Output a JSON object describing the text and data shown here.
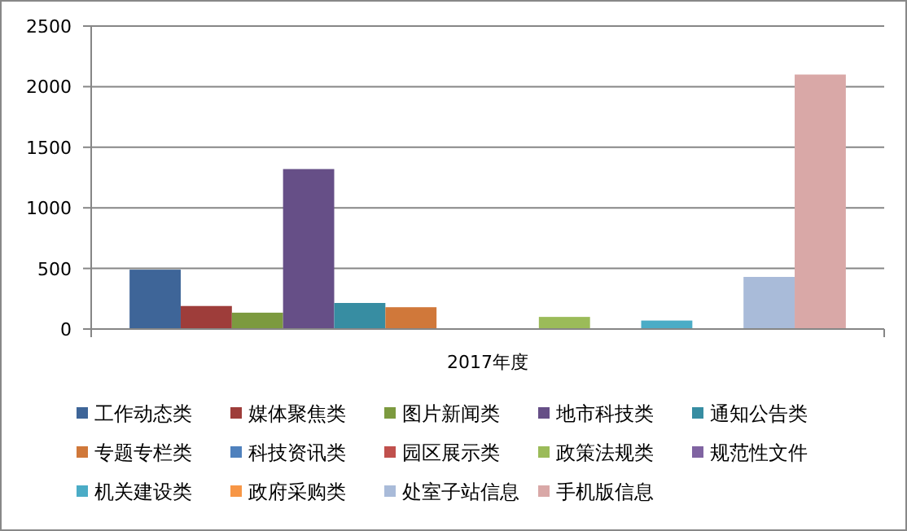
{
  "chart_data": {
    "type": "bar",
    "categories": [
      "2017年度"
    ],
    "ylim": [
      0,
      2500
    ],
    "yticks": [
      0,
      500,
      1000,
      1500,
      2000,
      2500
    ],
    "grid": "y",
    "legend": "bottom",
    "series": [
      {
        "name": "工作动态类",
        "color": "#3e6598",
        "values": [
          490
        ]
      },
      {
        "name": "媒体聚焦类",
        "color": "#9e3d3a",
        "values": [
          190
        ]
      },
      {
        "name": "图片新闻类",
        "color": "#7c9a3f",
        "values": [
          135
        ]
      },
      {
        "name": "地市科技类",
        "color": "#664f87",
        "values": [
          1320
        ]
      },
      {
        "name": "通知公告类",
        "color": "#378da2",
        "values": [
          215
        ]
      },
      {
        "name": "专题专栏类",
        "color": "#d0783a",
        "values": [
          180
        ]
      },
      {
        "name": "科技资讯类",
        "color": "#4f81bd",
        "values": [
          0
        ]
      },
      {
        "name": "园区展示类",
        "color": "#c0504d",
        "values": [
          0
        ]
      },
      {
        "name": "政策法规类",
        "color": "#9bbb59",
        "values": [
          100
        ]
      },
      {
        "name": "规范性文件",
        "color": "#8064a2",
        "values": [
          0
        ]
      },
      {
        "name": "机关建设类",
        "color": "#4bacc6",
        "values": [
          70
        ]
      },
      {
        "name": "政府采购类",
        "color": "#f79646",
        "values": [
          0
        ]
      },
      {
        "name": "处室子站信息",
        "color": "#a9bbd9",
        "values": [
          430
        ]
      },
      {
        "name": "手机版信息",
        "color": "#d9a8a7",
        "values": [
          2100
        ]
      }
    ]
  }
}
